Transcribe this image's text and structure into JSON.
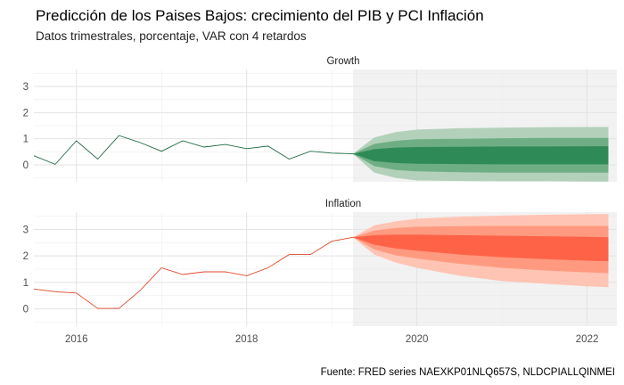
{
  "chart_data": {
    "type": "area",
    "title": "Predicción de los Paises Bajos: crecimiento del PIB y PCI Inflación",
    "subtitle": "Datos trimestrales, porcentaje, VAR con 4 retardos",
    "caption": "Fuente: FRED series NAEXKP01NLQ657S, NLDCPIALLQINMEI",
    "xlim": [
      2015.5,
      2022.35
    ],
    "x_ticks": [
      2016,
      2018,
      2020,
      2022
    ],
    "x_tick_labels": [
      "2016",
      "2018",
      "2020",
      "2022"
    ],
    "forecast_start": 2019.25,
    "forecast_end": 2022.25,
    "facets": [
      {
        "strip": "Growth",
        "ylim": [
          -0.65,
          3.65
        ],
        "y_ticks": [
          0,
          1,
          2,
          3
        ],
        "y_tick_labels": [
          "0",
          "1",
          "2",
          "3"
        ],
        "line_color": "#1f6b45",
        "band_colors": [
          "#b3d1ba",
          "#6fae84",
          "#2e8b57"
        ],
        "history": {
          "x": [
            2015.5,
            2015.75,
            2016.0,
            2016.25,
            2016.5,
            2016.75,
            2017.0,
            2017.25,
            2017.5,
            2017.75,
            2018.0,
            2018.25,
            2018.5,
            2018.75,
            2019.0,
            2019.25
          ],
          "y": [
            0.35,
            0.02,
            0.92,
            0.22,
            1.12,
            0.85,
            0.52,
            0.92,
            0.68,
            0.78,
            0.62,
            0.72,
            0.22,
            0.52,
            0.45,
            0.42
          ]
        },
        "fan": {
          "x": [
            2019.25,
            2019.5,
            2019.75,
            2020.0,
            2020.5,
            2021.0,
            2021.5,
            2022.0,
            2022.25
          ],
          "mean": [
            0.42,
            0.36,
            0.35,
            0.35,
            0.36,
            0.36,
            0.37,
            0.37,
            0.37
          ],
          "bands": [
            {
              "level": "95%",
              "lower": [
                0.42,
                -0.3,
                -0.5,
                -0.6,
                -0.62,
                -0.63,
                -0.63,
                -0.64,
                -0.64
              ],
              "upper": [
                0.42,
                1.05,
                1.25,
                1.35,
                1.4,
                1.42,
                1.44,
                1.45,
                1.45
              ]
            },
            {
              "level": "80%",
              "lower": [
                0.42,
                -0.05,
                -0.2,
                -0.25,
                -0.28,
                -0.3,
                -0.3,
                -0.3,
                -0.3
              ],
              "upper": [
                0.42,
                0.8,
                0.92,
                0.98,
                1.0,
                1.02,
                1.03,
                1.03,
                1.03
              ]
            },
            {
              "level": "50%",
              "lower": [
                0.42,
                0.14,
                0.07,
                0.04,
                0.03,
                0.02,
                0.02,
                0.02,
                0.02
              ],
              "upper": [
                0.42,
                0.6,
                0.66,
                0.68,
                0.69,
                0.7,
                0.7,
                0.71,
                0.71
              ]
            }
          ]
        }
      },
      {
        "strip": "Inflation",
        "ylim": [
          -0.65,
          3.65
        ],
        "y_ticks": [
          0,
          1,
          2,
          3
        ],
        "y_tick_labels": [
          "0",
          "1",
          "2",
          "3"
        ],
        "line_color": "#e0472b",
        "band_colors": [
          "#ffc4b4",
          "#ff9a80",
          "#ff6347"
        ],
        "history": {
          "x": [
            2015.5,
            2015.75,
            2016.0,
            2016.25,
            2016.5,
            2016.75,
            2017.0,
            2017.25,
            2017.5,
            2017.75,
            2018.0,
            2018.25,
            2018.5,
            2018.75,
            2019.0,
            2019.25
          ],
          "y": [
            0.75,
            0.65,
            0.6,
            0.02,
            0.02,
            0.7,
            1.55,
            1.3,
            1.4,
            1.4,
            1.25,
            1.55,
            2.05,
            2.05,
            2.55,
            2.7
          ]
        },
        "fan": {
          "x": [
            2019.25,
            2019.5,
            2019.75,
            2020.0,
            2020.5,
            2021.0,
            2021.5,
            2022.0,
            2022.25
          ],
          "mean": [
            2.7,
            2.58,
            2.5,
            2.45,
            2.35,
            2.28,
            2.24,
            2.2,
            2.18
          ],
          "bands": [
            {
              "level": "95%",
              "lower": [
                2.7,
                2.05,
                1.75,
                1.55,
                1.25,
                1.05,
                0.95,
                0.85,
                0.82
              ],
              "upper": [
                2.7,
                3.15,
                3.3,
                3.4,
                3.48,
                3.52,
                3.55,
                3.57,
                3.58
              ]
            },
            {
              "level": "80%",
              "lower": [
                2.7,
                2.25,
                2.02,
                1.9,
                1.7,
                1.55,
                1.45,
                1.38,
                1.35
              ],
              "upper": [
                2.7,
                2.95,
                3.05,
                3.1,
                3.12,
                3.13,
                3.13,
                3.13,
                3.13
              ]
            },
            {
              "level": "50%",
              "lower": [
                2.7,
                2.42,
                2.28,
                2.2,
                2.05,
                1.95,
                1.88,
                1.82,
                1.8
              ],
              "upper": [
                2.7,
                2.78,
                2.8,
                2.8,
                2.78,
                2.76,
                2.74,
                2.72,
                2.7
              ]
            }
          ]
        }
      }
    ],
    "grid": true,
    "legend": "none"
  }
}
